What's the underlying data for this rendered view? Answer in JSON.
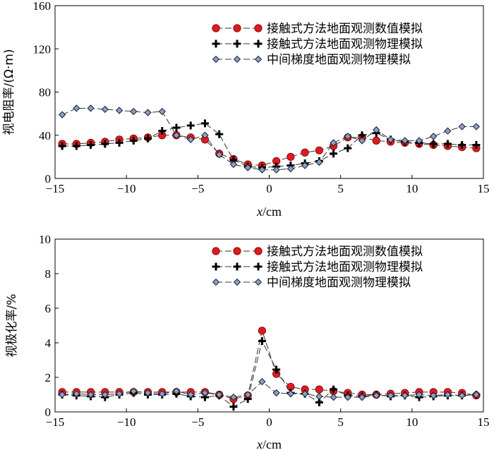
{
  "charts": [
    {
      "type": "line",
      "xlabel_var": "x",
      "xlabel_unit": "/cm",
      "ylabel": "视电阻率/(Ω·m)",
      "xlim": [
        -15,
        15
      ],
      "ylim": [
        0,
        160
      ],
      "xticks": [
        -15,
        -10,
        -5,
        0,
        5,
        10,
        15
      ],
      "yticks": [
        0,
        40,
        80,
        120,
        160
      ],
      "xtick_labels": [
        "−15",
        "−10",
        "−5",
        "0",
        "5",
        "10",
        "15"
      ],
      "ytick_labels": [
        "0",
        "40",
        "80",
        "120",
        "160"
      ],
      "series": [
        {
          "name": "接触式方法地面观测数值模拟",
          "marker": "circle",
          "x": [
            -14.5,
            -13.5,
            -12.5,
            -11.5,
            -10.5,
            -9.5,
            -8.5,
            -7.5,
            -6.5,
            -5.5,
            -4.5,
            -3.5,
            -2.5,
            -1.5,
            -0.5,
            0.5,
            1.5,
            2.5,
            3.5,
            4.5,
            5.5,
            6.5,
            7.5,
            8.5,
            9.5,
            10.5,
            11.5,
            12.5,
            13.5,
            14.5
          ],
          "values": [
            32,
            32,
            33,
            34,
            36,
            37,
            38,
            40,
            40,
            38,
            36,
            23,
            18,
            13,
            12,
            16,
            20,
            24,
            26,
            30,
            38,
            38,
            35,
            34,
            33,
            32,
            31,
            30,
            29,
            28
          ]
        },
        {
          "name": "接触式方法地面观测物理模拟",
          "marker": "plus",
          "x": [
            -14.5,
            -13.5,
            -12.5,
            -11.5,
            -10.5,
            -9.5,
            -8.5,
            -7.5,
            -6.5,
            -5.5,
            -4.5,
            -3.5,
            -2.5,
            -1.5,
            -0.5,
            0.5,
            1.5,
            2.5,
            3.5,
            4.5,
            5.5,
            6.5,
            7.5,
            8.5,
            9.5,
            10.5,
            11.5,
            12.5,
            13.5,
            14.5
          ],
          "values": [
            30,
            30,
            31,
            32,
            33,
            35,
            37,
            44,
            47,
            49,
            51,
            41,
            17,
            11,
            10,
            11,
            12,
            14,
            16,
            23,
            28,
            40,
            42,
            36,
            34,
            33,
            32,
            32,
            31,
            31
          ]
        },
        {
          "name": "中间梯度地面观测物理模拟",
          "marker": "diamond",
          "x": [
            -14.5,
            -13.5,
            -12.5,
            -11.5,
            -10.5,
            -9.5,
            -8.5,
            -7.5,
            -6.5,
            -5.5,
            -4.5,
            -3.5,
            -2.5,
            -1.5,
            -0.5,
            0.5,
            1.5,
            2.5,
            3.5,
            4.5,
            5.5,
            6.5,
            7.5,
            8.5,
            9.5,
            10.5,
            11.5,
            12.5,
            13.5,
            14.5
          ],
          "values": [
            59,
            65,
            65,
            64,
            63,
            62,
            61,
            62,
            40,
            36,
            40,
            22,
            13,
            10,
            8,
            8,
            9,
            12,
            15,
            33,
            39,
            35,
            45,
            36,
            35,
            35,
            39,
            44,
            48,
            48
          ]
        }
      ]
    },
    {
      "type": "line",
      "xlabel_var": "x",
      "xlabel_unit": "/cm",
      "ylabel": "视极化率/%",
      "xlim": [
        -15,
        15
      ],
      "ylim": [
        0,
        10
      ],
      "xticks": [
        -15,
        -10,
        -5,
        0,
        5,
        10,
        15
      ],
      "yticks": [
        0,
        2,
        4,
        6,
        8,
        10
      ],
      "xtick_labels": [
        "−15",
        "−10",
        "−5",
        "0",
        "5",
        "10",
        "15"
      ],
      "ytick_labels": [
        "0",
        "2",
        "4",
        "6",
        "8",
        "10"
      ],
      "series": [
        {
          "name": "接触式方法地面观测数值模拟",
          "marker": "circle",
          "x": [
            -14.5,
            -13.5,
            -12.5,
            -11.5,
            -10.5,
            -9.5,
            -8.5,
            -7.5,
            -6.5,
            -5.5,
            -4.5,
            -3.5,
            -2.5,
            -1.5,
            -0.5,
            0.5,
            1.5,
            2.5,
            3.5,
            4.5,
            5.5,
            6.5,
            7.5,
            8.5,
            9.5,
            10.5,
            11.5,
            12.5,
            13.5,
            14.5
          ],
          "values": [
            1.15,
            1.15,
            1.15,
            1.15,
            1.15,
            1.15,
            1.15,
            1.15,
            1.15,
            1.15,
            1.15,
            1.0,
            0.75,
            0.95,
            4.7,
            2.2,
            1.45,
            1.3,
            1.3,
            1.2,
            1.1,
            1.0,
            1.0,
            1.05,
            1.1,
            1.15,
            1.15,
            1.15,
            1.1,
            0.95
          ]
        },
        {
          "name": "接触式方法地面观测物理模拟",
          "marker": "plus",
          "x": [
            -14.5,
            -13.5,
            -12.5,
            -11.5,
            -10.5,
            -9.5,
            -8.5,
            -7.5,
            -6.5,
            -5.5,
            -4.5,
            -3.5,
            -2.5,
            -1.5,
            -0.5,
            0.5,
            1.5,
            2.5,
            3.5,
            4.5,
            5.5,
            6.5,
            7.5,
            8.5,
            9.5,
            10.5,
            11.5,
            12.5,
            13.5,
            14.5
          ],
          "values": [
            1.0,
            0.95,
            0.9,
            0.85,
            1.0,
            1.1,
            1.0,
            1.0,
            1.05,
            0.9,
            0.85,
            0.95,
            0.3,
            0.75,
            4.1,
            2.45,
            1.1,
            1.05,
            0.55,
            1.3,
            0.95,
            0.9,
            1.0,
            0.9,
            0.95,
            0.85,
            0.9,
            0.95,
            0.95,
            1.0
          ]
        },
        {
          "name": "中间梯度地面观测物理模拟",
          "marker": "diamond",
          "x": [
            -14.5,
            -13.5,
            -12.5,
            -11.5,
            -10.5,
            -9.5,
            -8.5,
            -7.5,
            -6.5,
            -5.5,
            -4.5,
            -3.5,
            -2.5,
            -1.5,
            -0.5,
            0.5,
            1.5,
            2.5,
            3.5,
            4.5,
            5.5,
            6.5,
            7.5,
            8.5,
            9.5,
            10.5,
            11.5,
            12.5,
            13.5,
            14.5
          ],
          "values": [
            1.0,
            1.05,
            1.0,
            1.0,
            1.05,
            1.2,
            1.1,
            1.05,
            1.2,
            1.0,
            1.1,
            1.0,
            0.85,
            1.0,
            1.75,
            1.1,
            1.05,
            1.05,
            0.9,
            0.85,
            0.85,
            0.85,
            0.95,
            0.95,
            0.95,
            1.0,
            0.95,
            1.0,
            0.95,
            1.0
          ]
        }
      ]
    }
  ],
  "colors": {
    "circle_fill": "#e01a22",
    "plus": "#000000",
    "diamond_fill": "#8fa0bf",
    "line": "#333333"
  }
}
